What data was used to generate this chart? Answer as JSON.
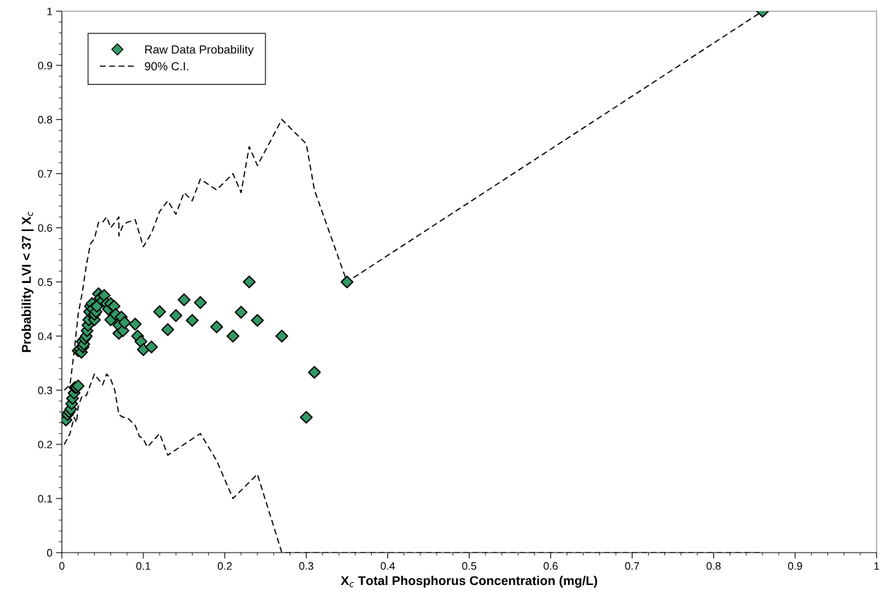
{
  "chart_data": {
    "type": "scatter",
    "xlabel": "X$_{c}$ Total Phosphorus Concentration (mg/L)",
    "ylabel": "Probability LVI < 37 | X$_{c}$",
    "xlim": [
      0,
      1
    ],
    "ylim": [
      0,
      1
    ],
    "xticks": [
      0,
      0.1,
      0.2,
      0.3,
      0.4,
      0.5,
      0.6,
      0.7,
      0.8,
      0.9,
      1
    ],
    "yticks": [
      0,
      0.1,
      0.2,
      0.3,
      0.4,
      0.5,
      0.6,
      0.7,
      0.8,
      0.9,
      1
    ],
    "grid": false,
    "legend": "top left",
    "series": [
      {
        "name": "Raw Data Probability",
        "marker": "diamond",
        "color": "#339966",
        "x": [
          0.005,
          0.007,
          0.009,
          0.011,
          0.012,
          0.013,
          0.015,
          0.016,
          0.018,
          0.02,
          0.02,
          0.022,
          0.024,
          0.025,
          0.026,
          0.027,
          0.028,
          0.03,
          0.031,
          0.032,
          0.033,
          0.034,
          0.035,
          0.037,
          0.038,
          0.04,
          0.04,
          0.042,
          0.043,
          0.045,
          0.047,
          0.05,
          0.052,
          0.055,
          0.057,
          0.06,
          0.06,
          0.064,
          0.066,
          0.07,
          0.07,
          0.073,
          0.075,
          0.077,
          0.09,
          0.093,
          0.097,
          0.1,
          0.11,
          0.12,
          0.13,
          0.14,
          0.15,
          0.16,
          0.17,
          0.19,
          0.21,
          0.22,
          0.23,
          0.24,
          0.27,
          0.3,
          0.31,
          0.35,
          0.86
        ],
        "values": [
          0.245,
          0.255,
          0.26,
          0.265,
          0.275,
          0.285,
          0.295,
          0.305,
          0.305,
          0.308,
          0.373,
          0.376,
          0.37,
          0.39,
          0.38,
          0.385,
          0.395,
          0.4,
          0.41,
          0.42,
          0.43,
          0.445,
          0.455,
          0.46,
          0.45,
          0.43,
          0.44,
          0.445,
          0.455,
          0.478,
          0.47,
          0.465,
          0.475,
          0.46,
          0.45,
          0.43,
          0.46,
          0.455,
          0.44,
          0.405,
          0.42,
          0.435,
          0.41,
          0.425,
          0.422,
          0.4,
          0.39,
          0.375,
          0.38,
          0.445,
          0.412,
          0.438,
          0.467,
          0.429,
          0.462,
          0.417,
          0.4,
          0.444,
          0.5,
          0.429,
          0.4,
          0.25,
          0.333,
          0.5,
          1.0
        ]
      },
      {
        "name": "90% C.I.",
        "type": "line",
        "marker": "none",
        "line_style": "dashed",
        "color": "#000000",
        "x": [
          0.003,
          0.01,
          0.015,
          0.02,
          0.025,
          0.03,
          0.035,
          0.04,
          0.045,
          0.05,
          0.055,
          0.06,
          0.065,
          0.07,
          0.07,
          0.075,
          0.08,
          0.09,
          0.1,
          0.11,
          0.12,
          0.13,
          0.14,
          0.15,
          0.16,
          0.17,
          0.19,
          0.21,
          0.22,
          0.23,
          0.24,
          0.27,
          0.3,
          0.31,
          0.35,
          0.86
        ],
        "values": [
          0.3,
          0.31,
          0.37,
          0.44,
          0.48,
          0.53,
          0.57,
          0.58,
          0.61,
          0.61,
          0.62,
          0.6,
          0.61,
          0.62,
          0.585,
          0.605,
          0.61,
          0.615,
          0.565,
          0.59,
          0.63,
          0.65,
          0.625,
          0.665,
          0.65,
          0.69,
          0.67,
          0.7,
          0.665,
          0.75,
          0.715,
          0.8,
          0.755,
          0.67,
          0.5,
          1.0
        ]
      },
      {
        "type": "line",
        "marker": "none",
        "line_style": "dashed",
        "color": "#000000",
        "x": [
          0.003,
          0.01,
          0.015,
          0.018,
          0.02,
          0.025,
          0.03,
          0.035,
          0.04,
          0.045,
          0.05,
          0.055,
          0.06,
          0.065,
          0.07,
          0.075,
          0.08,
          0.09,
          0.095,
          0.1,
          0.105,
          0.12,
          0.13,
          0.17,
          0.19,
          0.21,
          0.24,
          0.27,
          0.86
        ],
        "values": [
          0.2,
          0.22,
          0.25,
          0.24,
          0.27,
          0.29,
          0.29,
          0.31,
          0.33,
          0.32,
          0.31,
          0.33,
          0.32,
          0.3,
          0.255,
          0.25,
          0.25,
          0.235,
          0.215,
          0.21,
          0.195,
          0.22,
          0.18,
          0.22,
          0.17,
          0.1,
          0.145,
          0.0,
          0.0
        ]
      }
    ]
  }
}
